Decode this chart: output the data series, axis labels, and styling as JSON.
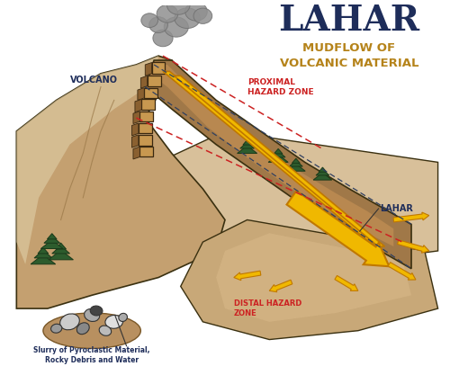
{
  "title": "LAHAR",
  "subtitle": "MUDFLOW OF\nVOLCANIC MATERIAL",
  "title_color": "#1e2d5a",
  "subtitle_color": "#b5831a",
  "background_color": "#ffffff",
  "labels": {
    "volcano": "VOLCANO",
    "proximal": "PROXIMAL\nHAZARD ZONE",
    "lahar": "LAHAR",
    "slurry": "Slurry of Pyroclastic Material,\nRocky Debris and Water",
    "distal": "DISTAL HAZARD\nZONE"
  },
  "label_colors": {
    "volcano": "#1e2d5a",
    "proximal": "#cc2222",
    "lahar": "#1e2d5a",
    "slurry": "#1e2d5a",
    "distal": "#cc2222"
  },
  "terrain_light": "#d4b98a",
  "terrain_mid": "#c4a070",
  "terrain_dark": "#a07848",
  "terrain_outline": "#3a3010",
  "channel_color": "#a07848",
  "channel_dark": "#7a5828",
  "flow_arrow_color": "#f0b800",
  "flow_arrow_edge": "#c07800",
  "dashed_line_color": "#cc2222",
  "dashed_dark": "#303060",
  "smoke_color": "#909090",
  "smoke_edge": "#707070",
  "tree_color": "#2d5c2d",
  "tree_dark": "#1a3a1a",
  "rock_colors": [
    "#c8c8c8",
    "#a0a0a0",
    "#d8d8d8",
    "#888888",
    "#b8b8b8",
    "#787878"
  ],
  "mud_color": "#b89060"
}
